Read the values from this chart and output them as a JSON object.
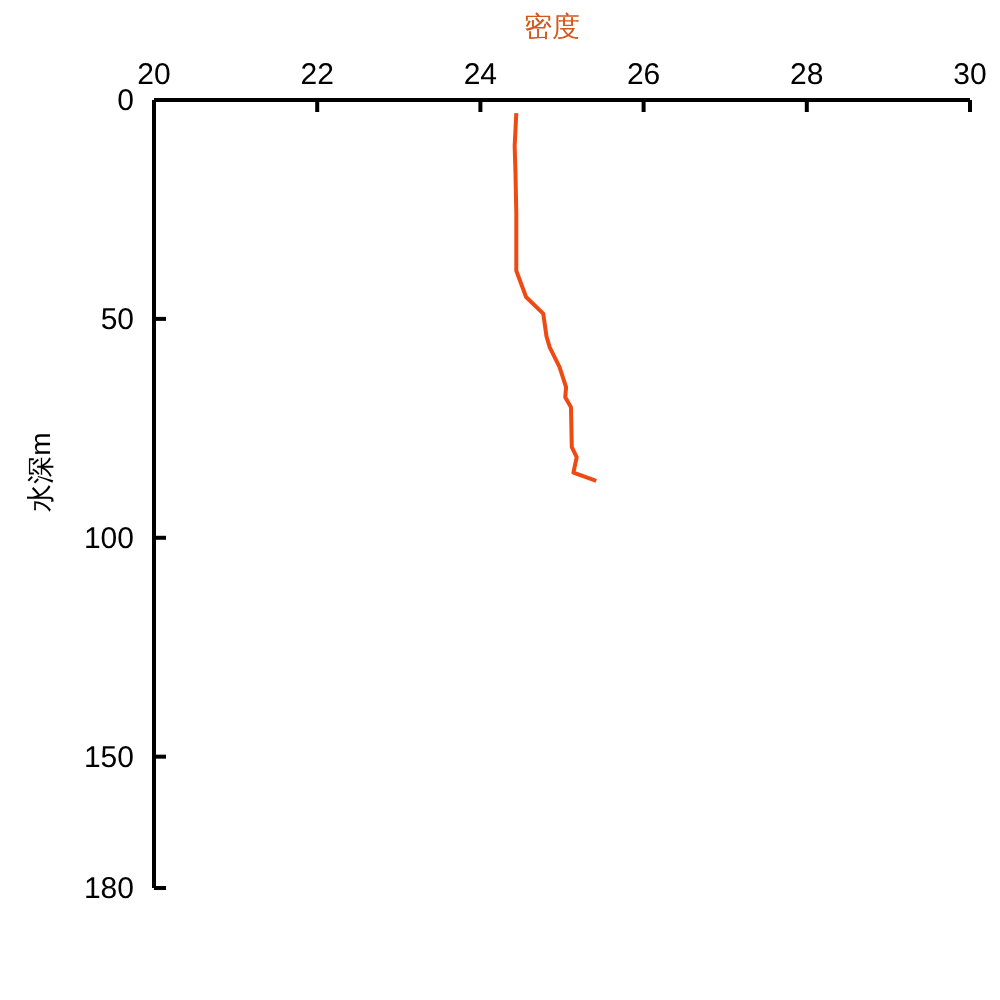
{
  "chart_data": {
    "type": "line",
    "title": "密度",
    "ylabel": "水深m",
    "series": [
      {
        "color": "#ee4b14",
        "x": [
          24.44,
          24.42,
          24.43,
          24.44,
          24.44,
          24.48,
          24.56,
          24.77,
          24.81,
          24.85,
          24.97,
          25.05,
          25.04,
          25.11,
          25.12,
          25.18,
          25.14,
          25.42
        ],
        "values": [
          3,
          10.5,
          16.8,
          26,
          39,
          41,
          45,
          48.8,
          54,
          56.5,
          61,
          65.6,
          67.9,
          70.2,
          79.3,
          81.6,
          85.1,
          87
        ]
      }
    ],
    "xlim": [
      20,
      30
    ],
    "xticks": [
      20,
      22,
      24,
      26,
      28,
      30
    ],
    "ylim": [
      180,
      0
    ],
    "yticks": [
      0,
      50,
      100,
      150,
      180
    ],
    "grid": false,
    "marker": "none",
    "line_style": "solid"
  }
}
